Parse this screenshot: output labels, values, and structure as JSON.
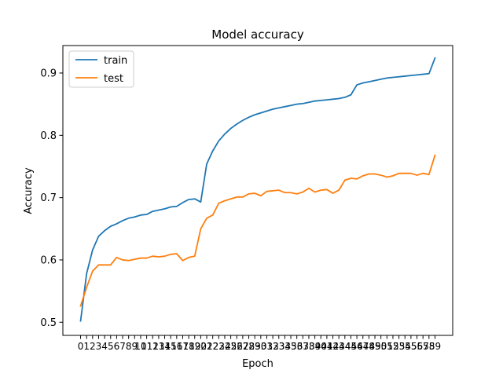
{
  "chart_data": {
    "type": "line",
    "title": "Model accuracy",
    "xlabel": "Epoch",
    "ylabel": "Accuracy",
    "xlim": [
      -2.95,
      61.95
    ],
    "ylim": [
      0.4789,
      0.9441
    ],
    "yticks": [
      0.5,
      0.6,
      0.7,
      0.8,
      0.9
    ],
    "ytick_labels": [
      "0.5",
      "0.6",
      "0.7",
      "0.8",
      "0.9"
    ],
    "xticks": [
      0,
      1,
      2,
      3,
      4,
      5,
      6,
      7,
      8,
      9,
      10,
      11,
      12,
      13,
      14,
      15,
      16,
      17,
      18,
      19,
      20,
      21,
      22,
      23,
      24,
      25,
      26,
      27,
      28,
      29,
      30,
      31,
      32,
      33,
      34,
      35,
      36,
      37,
      38,
      39,
      40,
      41,
      42,
      43,
      44,
      45,
      46,
      47,
      48,
      49,
      50,
      51,
      52,
      53,
      54,
      55,
      56,
      57,
      58,
      59
    ],
    "xtick_labels": [
      "0",
      "1",
      "2",
      "3",
      "4",
      "5",
      "6",
      "7",
      "8",
      "9",
      "10",
      "11",
      "12",
      "13",
      "14",
      "15",
      "16",
      "17",
      "18",
      "19",
      "20",
      "21",
      "22",
      "23",
      "24",
      "25",
      "26",
      "27",
      "28",
      "29",
      "30",
      "31",
      "32",
      "33",
      "34",
      "35",
      "36",
      "37",
      "38",
      "39",
      "40",
      "41",
      "42",
      "43",
      "44",
      "45",
      "46",
      "47",
      "48",
      "49",
      "50",
      "51",
      "52",
      "53",
      "54",
      "55",
      "56",
      "57",
      "58",
      "59"
    ],
    "legend_position": "top-left",
    "series": [
      {
        "name": "train",
        "color": "#1f77b4",
        "values": [
          0.502,
          0.578,
          0.616,
          0.638,
          0.647,
          0.654,
          0.658,
          0.663,
          0.667,
          0.669,
          0.672,
          0.673,
          0.678,
          0.68,
          0.682,
          0.685,
          0.686,
          0.692,
          0.697,
          0.698,
          0.693,
          0.754,
          0.775,
          0.791,
          0.802,
          0.811,
          0.818,
          0.824,
          0.829,
          0.833,
          0.836,
          0.839,
          0.842,
          0.844,
          0.846,
          0.848,
          0.85,
          0.851,
          0.853,
          0.855,
          0.856,
          0.857,
          0.858,
          0.859,
          0.861,
          0.865,
          0.881,
          0.884,
          0.886,
          0.888,
          0.89,
          0.892,
          0.893,
          0.894,
          0.895,
          0.896,
          0.897,
          0.898,
          0.899,
          0.924
        ]
      },
      {
        "name": "test",
        "color": "#ff7f0e",
        "values": [
          0.526,
          0.556,
          0.582,
          0.592,
          0.592,
          0.592,
          0.604,
          0.6,
          0.599,
          0.601,
          0.603,
          0.603,
          0.606,
          0.605,
          0.606,
          0.609,
          0.61,
          0.599,
          0.604,
          0.606,
          0.65,
          0.667,
          0.672,
          0.691,
          0.695,
          0.698,
          0.701,
          0.701,
          0.706,
          0.707,
          0.703,
          0.71,
          0.711,
          0.712,
          0.708,
          0.708,
          0.706,
          0.709,
          0.715,
          0.709,
          0.712,
          0.713,
          0.707,
          0.712,
          0.728,
          0.731,
          0.73,
          0.735,
          0.738,
          0.738,
          0.736,
          0.733,
          0.735,
          0.739,
          0.739,
          0.739,
          0.736,
          0.739,
          0.737,
          0.768
        ]
      }
    ]
  }
}
